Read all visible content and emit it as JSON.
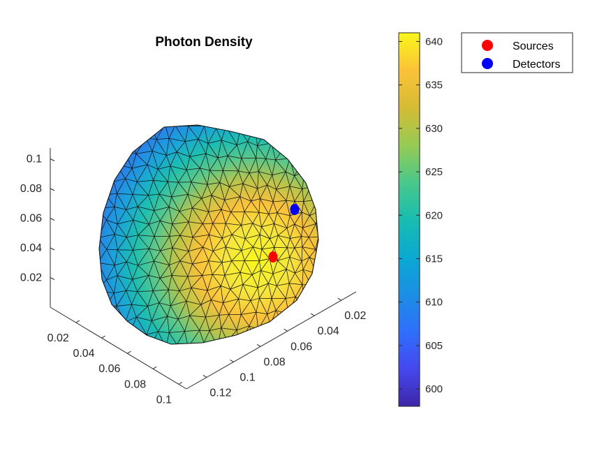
{
  "chart_data": {
    "type": "3d-surface-mesh",
    "title": "Photon Density",
    "axes": {
      "x_ticks": [
        "0.02",
        "0.04",
        "0.06",
        "0.08",
        "0.1"
      ],
      "y_ticks": [
        "0.02",
        "0.04",
        "0.06",
        "0.08",
        "0.1",
        "0.12"
      ],
      "z_ticks": [
        "0.02",
        "0.04",
        "0.06",
        "0.08",
        "0.1"
      ]
    },
    "colorbar": {
      "colormap": "parula",
      "range": [
        598,
        641
      ],
      "ticks": [
        "600",
        "605",
        "610",
        "615",
        "620",
        "625",
        "630",
        "635",
        "640"
      ]
    },
    "legend": {
      "placement": "top-right",
      "entries": [
        {
          "label": "Sources",
          "color": "#ff0000"
        },
        {
          "label": "Detectors",
          "color": "#0000ff"
        }
      ]
    },
    "markers": [
      {
        "type": "source",
        "color": "#ff0000"
      },
      {
        "type": "detector",
        "color": "#0000ff"
      }
    ]
  }
}
